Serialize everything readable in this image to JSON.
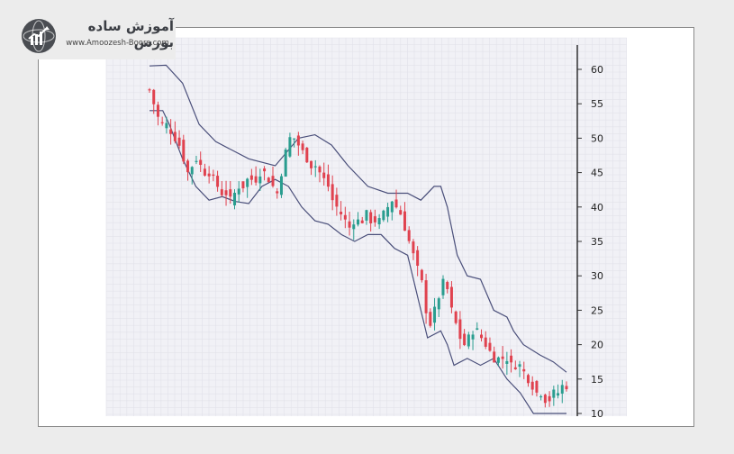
{
  "brand": {
    "title": "آموزش ساده بورس",
    "url": "www.Amoozesh-Boors.com",
    "logo_icon": "chart-globe-logo-icon"
  },
  "colors": {
    "up": "#2a9d8f",
    "down": "#e0424f",
    "band": "#4a4f7a",
    "background": "#f1f1f6",
    "grid": "#e2e2ea"
  },
  "chart_data": {
    "type": "candlestick",
    "indicator": "bollinger-bands",
    "ylim": [
      10,
      60
    ],
    "yticks": [
      10,
      15,
      20,
      25,
      30,
      35,
      40,
      45,
      50,
      55,
      60
    ],
    "y_axis_position": "right",
    "grid": true,
    "close_series": [
      57,
      55,
      53,
      52,
      52,
      51,
      50,
      49,
      47,
      45,
      46,
      47,
      46,
      45,
      45,
      44,
      43,
      42,
      42,
      41,
      42,
      43,
      43,
      44,
      44,
      44,
      45,
      45,
      44,
      43,
      42,
      45,
      48,
      50,
      50,
      49,
      48,
      47,
      46,
      46,
      45,
      44,
      43,
      41,
      40,
      39,
      38,
      37,
      38,
      38,
      38,
      39,
      38,
      38,
      38,
      39,
      40,
      41,
      40,
      39,
      37,
      35,
      33,
      31,
      29,
      25,
      23,
      25,
      27,
      29,
      28,
      25,
      23,
      21,
      20,
      21,
      22,
      22,
      21,
      20,
      19,
      18,
      18,
      18,
      18,
      17,
      17,
      17,
      16,
      15,
      14,
      13,
      13,
      12,
      12,
      13,
      13,
      14,
      14
    ],
    "upper_band_points": [
      [
        0,
        60.5
      ],
      [
        5,
        60.6
      ],
      [
        10,
        58
      ],
      [
        15,
        52
      ],
      [
        20,
        49.5
      ],
      [
        30,
        47
      ],
      [
        38,
        46
      ],
      [
        45,
        50
      ],
      [
        50,
        50.5
      ],
      [
        55,
        49
      ],
      [
        60,
        46
      ],
      [
        66,
        43
      ],
      [
        72,
        42
      ],
      [
        78,
        42
      ],
      [
        82,
        41
      ],
      [
        86,
        43
      ],
      [
        88,
        43
      ],
      [
        90,
        40
      ],
      [
        93,
        33
      ],
      [
        96,
        30
      ],
      [
        100,
        29.5
      ],
      [
        104,
        25
      ],
      [
        108,
        24
      ],
      [
        110,
        22
      ],
      [
        113,
        20
      ],
      [
        118,
        18.5
      ],
      [
        122,
        17.5
      ],
      [
        126,
        16
      ]
    ],
    "lower_band_points": [
      [
        0,
        54
      ],
      [
        4,
        54
      ],
      [
        6,
        52
      ],
      [
        10,
        47
      ],
      [
        14,
        43
      ],
      [
        18,
        41
      ],
      [
        22,
        41.5
      ],
      [
        26,
        40.8
      ],
      [
        30,
        40.5
      ],
      [
        34,
        43
      ],
      [
        38,
        44
      ],
      [
        42,
        43
      ],
      [
        46,
        40
      ],
      [
        50,
        38
      ],
      [
        54,
        37.5
      ],
      [
        58,
        36
      ],
      [
        62,
        35
      ],
      [
        66,
        36
      ],
      [
        70,
        36
      ],
      [
        74,
        34
      ],
      [
        78,
        33
      ],
      [
        82,
        25
      ],
      [
        84,
        21
      ],
      [
        88,
        22
      ],
      [
        90,
        20
      ],
      [
        92,
        17
      ],
      [
        96,
        18
      ],
      [
        100,
        17
      ],
      [
        104,
        18
      ],
      [
        108,
        15
      ],
      [
        112,
        13
      ],
      [
        116,
        10
      ],
      [
        120,
        10
      ],
      [
        124,
        10
      ],
      [
        126,
        10
      ]
    ]
  }
}
